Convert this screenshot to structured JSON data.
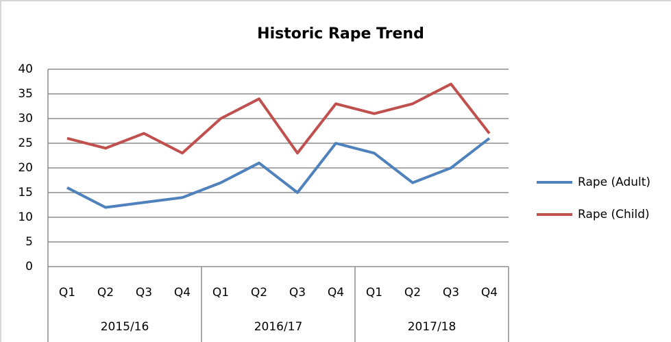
{
  "chart_data": {
    "type": "line",
    "title": "Historic Rape Trend",
    "categories": [
      "Q1",
      "Q2",
      "Q3",
      "Q4",
      "Q1",
      "Q2",
      "Q3",
      "Q4",
      "Q1",
      "Q2",
      "Q3",
      "Q4"
    ],
    "category_groups": [
      "2015/16",
      "2016/17",
      "2017/18"
    ],
    "series": [
      {
        "name": "Rape (Adult)",
        "color": "#4f81bd",
        "values": [
          16,
          12,
          13,
          14,
          17,
          21,
          15,
          25,
          23,
          17,
          20,
          26
        ]
      },
      {
        "name": "Rape (Child)",
        "color": "#c0504d",
        "values": [
          26,
          24,
          27,
          23,
          30,
          34,
          23,
          33,
          31,
          33,
          37,
          27
        ]
      }
    ],
    "ylim": [
      0,
      40
    ],
    "yticks": [
      0,
      5,
      10,
      15,
      20,
      25,
      30,
      35,
      40
    ],
    "grid": true,
    "legend": "right"
  }
}
